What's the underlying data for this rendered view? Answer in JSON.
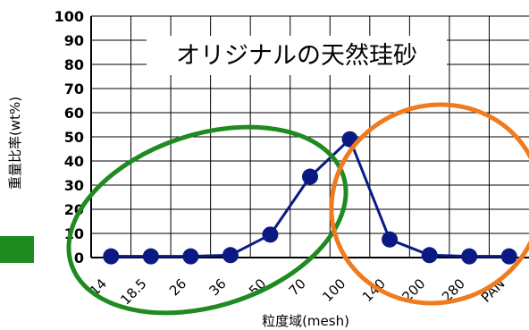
{
  "chart_data": {
    "type": "line",
    "title": "オリジナルの天然珪砂",
    "xlabel": "粒度域(mesh)",
    "ylabel": "重量比率(wt%)",
    "ylim": [
      0,
      100
    ],
    "yticks": [
      0,
      10,
      20,
      30,
      40,
      50,
      60,
      70,
      80,
      90,
      100
    ],
    "categories": [
      "14",
      "18.5",
      "26",
      "36",
      "50",
      "70",
      "100",
      "140",
      "200",
      "280",
      "PAN"
    ],
    "series": [
      {
        "values": [
          0.5,
          0.5,
          0.5,
          1,
          9.5,
          33.5,
          49,
          7.5,
          1,
          0.5,
          0.5
        ]
      }
    ],
    "grid": true,
    "colors": {
      "series": "#0a1a82",
      "grid": "#000000",
      "axis": "#000000",
      "left_ellipse": "#1f8a1f",
      "right_ellipse": "#f07a1e",
      "left_marker": "#1f8a1f"
    }
  }
}
